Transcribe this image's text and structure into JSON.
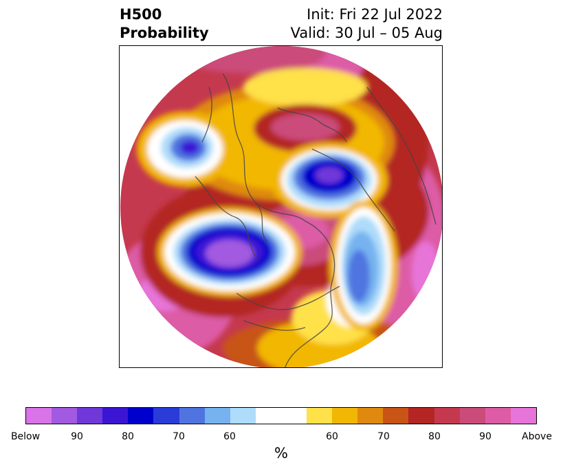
{
  "header": {
    "title_line1": "H500",
    "title_line2": "Probability",
    "init_text": "Init: Fri 22 Jul 2022",
    "valid_text": "Valid: 30 Jul – 05 Aug"
  },
  "colorbar": {
    "colors": [
      "#d973e8",
      "#a25ae0",
      "#7038d8",
      "#3a16d4",
      "#0000cc",
      "#2a3cd8",
      "#4f74e0",
      "#76b2ef",
      "#aedcfa",
      "#ffffff",
      "#ffffff",
      "#ffe14a",
      "#f2b705",
      "#df8a0e",
      "#c85516",
      "#b32624",
      "#c5394e",
      "#cb4b7a",
      "#dd5ca6",
      "#e774d8"
    ],
    "ticks": [
      {
        "label": "Below"
      },
      {
        "label": "90"
      },
      {
        "label": "80"
      },
      {
        "label": "70"
      },
      {
        "label": "60"
      },
      {
        "label": "60"
      },
      {
        "label": "70"
      },
      {
        "label": "80"
      },
      {
        "label": "90"
      },
      {
        "label": "Above"
      }
    ],
    "unit": "%"
  }
}
